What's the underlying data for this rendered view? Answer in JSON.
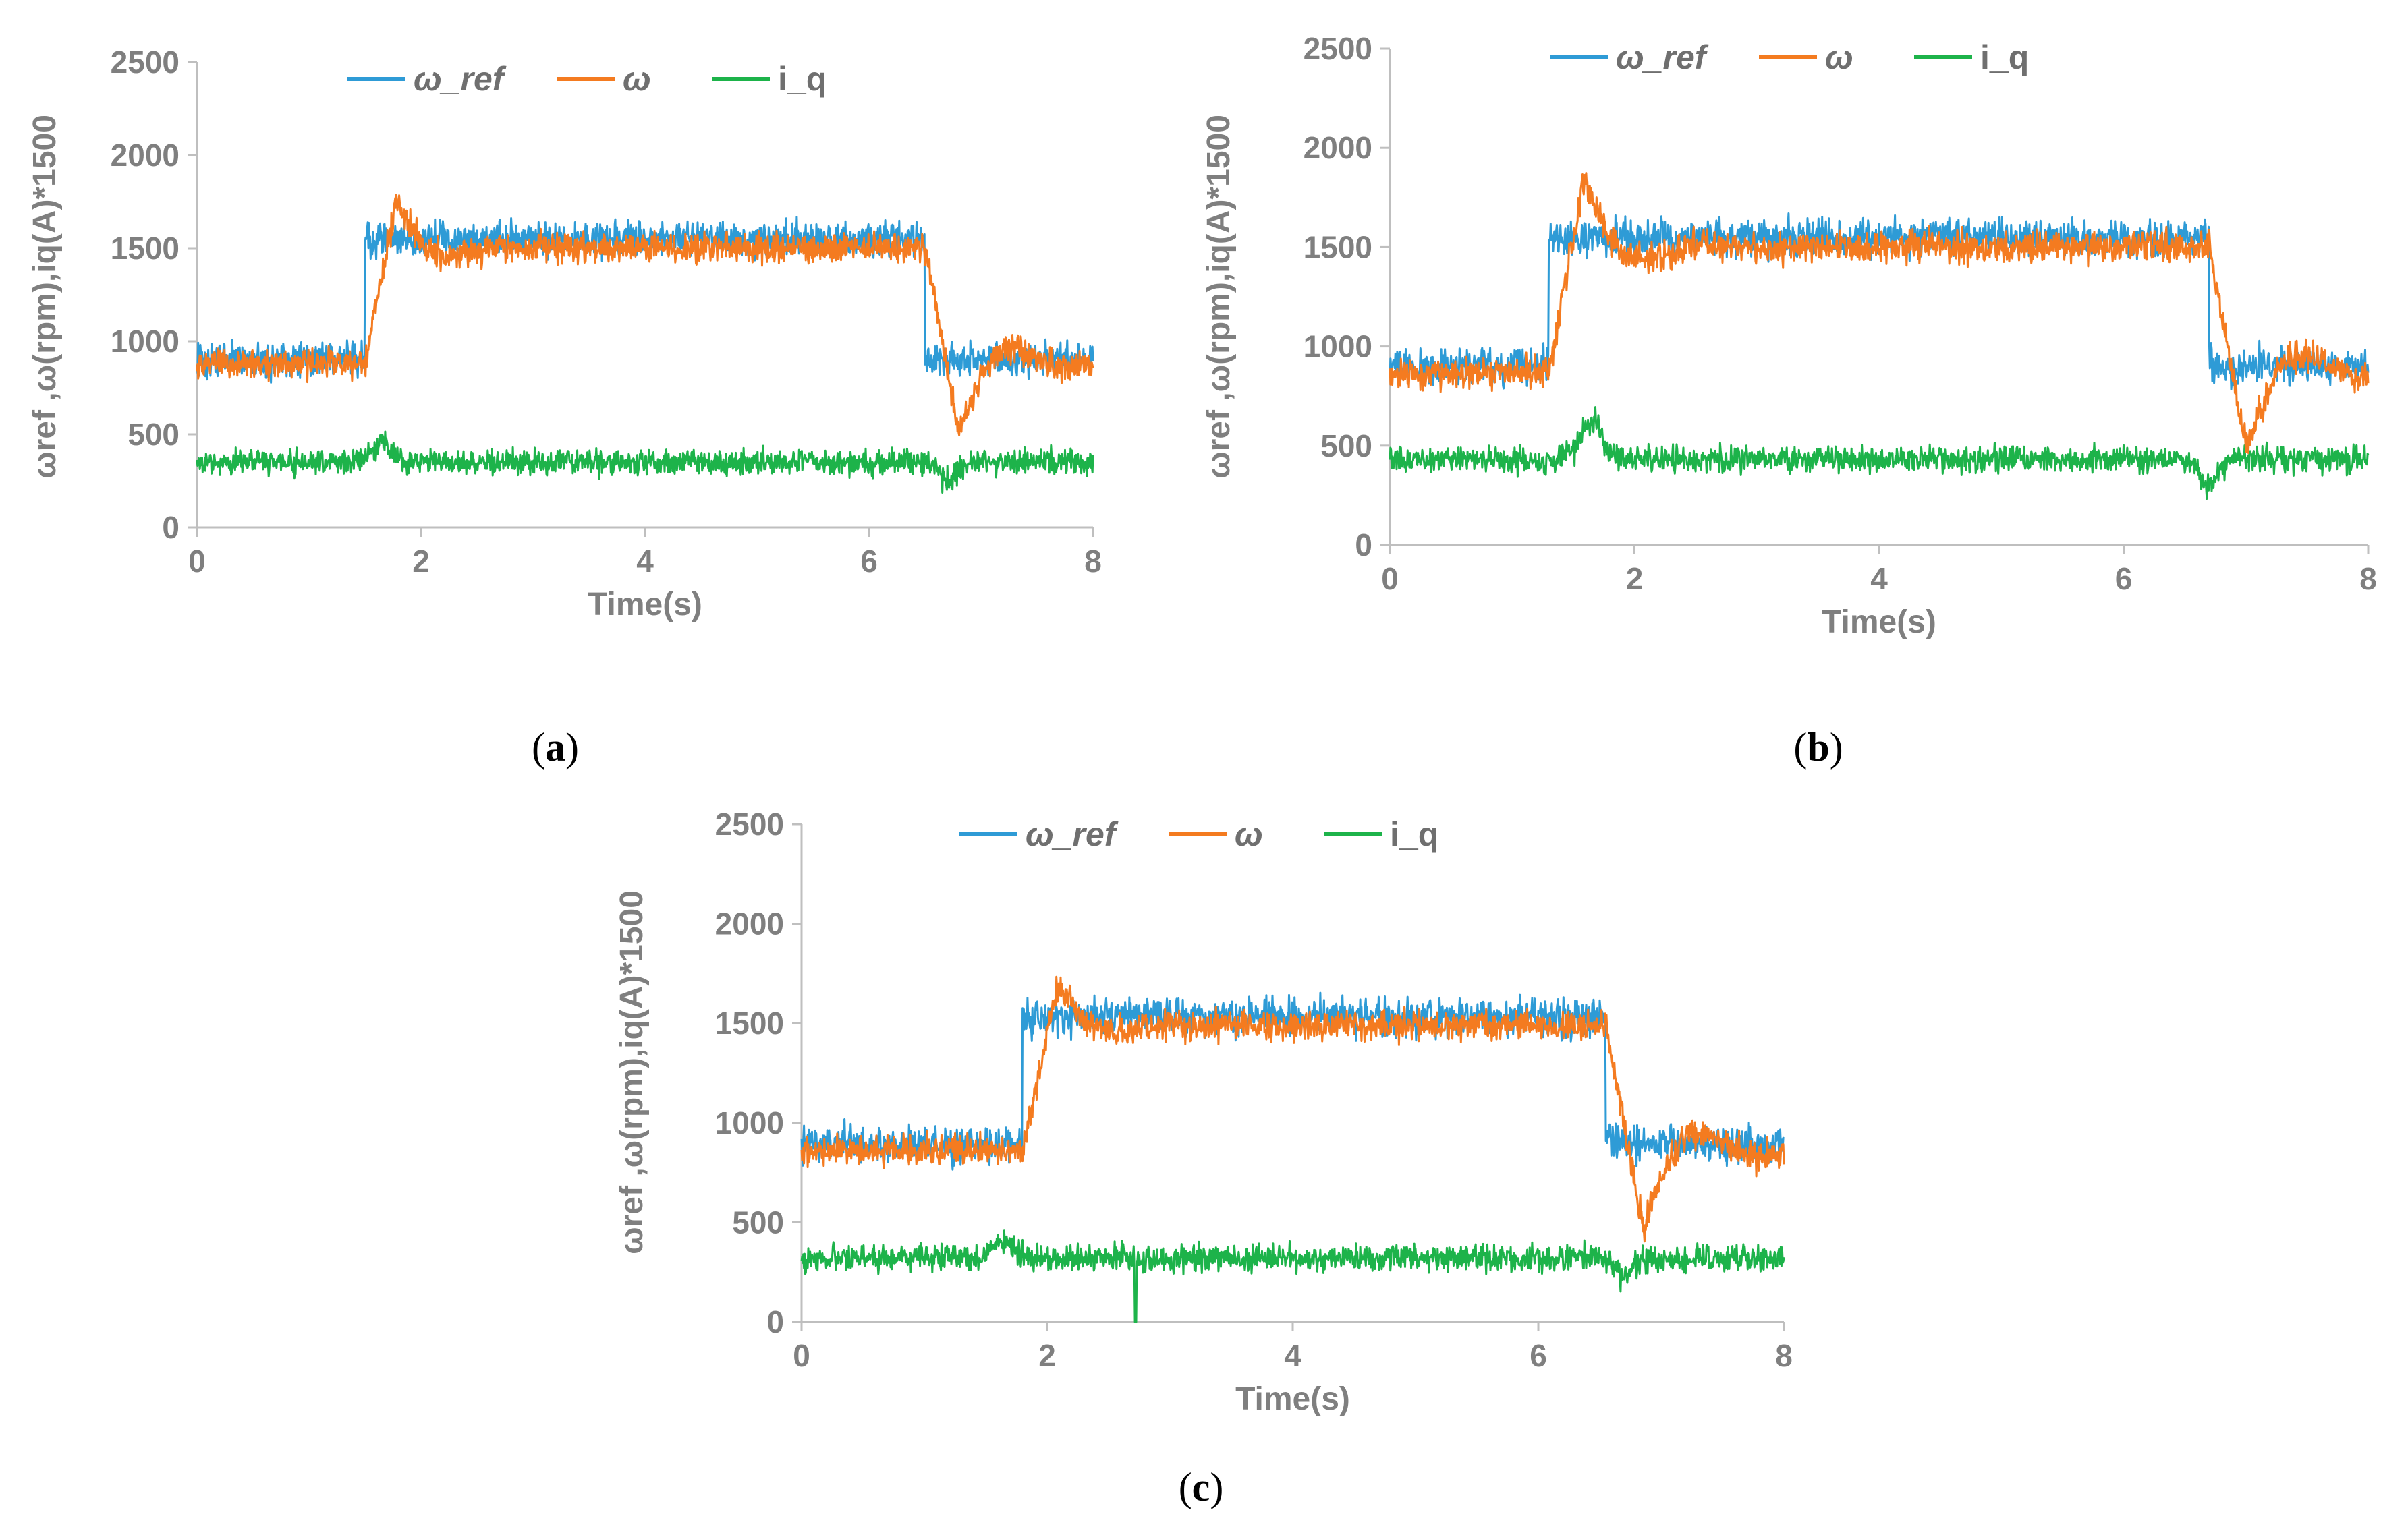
{
  "figure": {
    "colors": {
      "omega_ref": "#2e9bd6",
      "omega": "#f47b20",
      "iq": "#1db34a",
      "axis": "#bfbfbf",
      "text": "#7f7f7f"
    },
    "chart_data": [
      {
        "id": "a",
        "type": "line",
        "caption_label": "a",
        "xlabel": "Time(s)",
        "ylabel": "ωref ,ω(rpm),iq(A)*1500",
        "xlim": [
          0,
          8
        ],
        "ylim": [
          0,
          2500
        ],
        "xticks": [
          0,
          2,
          4,
          6,
          8
        ],
        "yticks": [
          0,
          500,
          1000,
          1500,
          2000,
          2500
        ],
        "legend": [
          "ω_ref",
          "ω",
          "i_q"
        ],
        "legend_position": "top",
        "series": [
          {
            "name": "ω_ref",
            "key": "omega_ref",
            "low": 900,
            "high": 1550,
            "step_up": 1.5,
            "step_down": 6.5
          },
          {
            "name": "ω",
            "key": "omega",
            "low": 880,
            "high": 1500,
            "step_up": 1.5,
            "step_down": 6.5,
            "overshoot_peak": 1750,
            "undershoot_min": 520
          },
          {
            "name": "i_q",
            "key": "iq",
            "level": 350,
            "bump_up": 450,
            "dip_down": 250
          }
        ]
      },
      {
        "id": "b",
        "type": "line",
        "caption_label": "b",
        "xlabel": "Time(s)",
        "ylabel": "ωref ,ω(rpm),iq(A)*1500",
        "xlim": [
          0,
          8
        ],
        "ylim": [
          0,
          2500
        ],
        "xticks": [
          0,
          2,
          4,
          6,
          8
        ],
        "yticks": [
          0,
          500,
          1000,
          1500,
          2000,
          2500
        ],
        "legend": [
          "ω_ref",
          "ω",
          "i_q"
        ],
        "legend_position": "top",
        "series": [
          {
            "name": "ω_ref",
            "key": "omega_ref",
            "low": 900,
            "high": 1550,
            "step_up": 1.3,
            "step_down": 6.7
          },
          {
            "name": "ω",
            "key": "omega",
            "low": 870,
            "high": 1500,
            "step_up": 1.3,
            "step_down": 6.7,
            "overshoot_peak": 1830,
            "undershoot_min": 500
          },
          {
            "name": "i_q",
            "key": "iq",
            "level": 430,
            "bump_up": 620,
            "dip_down": 300
          }
        ]
      },
      {
        "id": "c",
        "type": "line",
        "caption_label": "c",
        "xlabel": "Time(s)",
        "ylabel": "ωref ,ω(rpm),iq(A)*1500",
        "xlim": [
          0,
          8
        ],
        "ylim": [
          0,
          2500
        ],
        "xticks": [
          0,
          2,
          4,
          6,
          8
        ],
        "yticks": [
          0,
          500,
          1000,
          1500,
          2000,
          2500
        ],
        "legend": [
          "ω_ref",
          "ω",
          "i_q"
        ],
        "legend_position": "top",
        "series": [
          {
            "name": "ω_ref",
            "key": "omega_ref",
            "low": 890,
            "high": 1530,
            "step_up": 1.8,
            "step_down": 6.55
          },
          {
            "name": "ω",
            "key": "omega",
            "low": 860,
            "high": 1490,
            "step_up": 1.8,
            "step_down": 6.55,
            "overshoot_peak": 1680,
            "undershoot_min": 480
          },
          {
            "name": "i_q",
            "key": "iq",
            "level": 320,
            "bump_up": 420,
            "dip_down": 220,
            "spike_at": 2.72,
            "spike_min": 0
          }
        ]
      }
    ]
  }
}
